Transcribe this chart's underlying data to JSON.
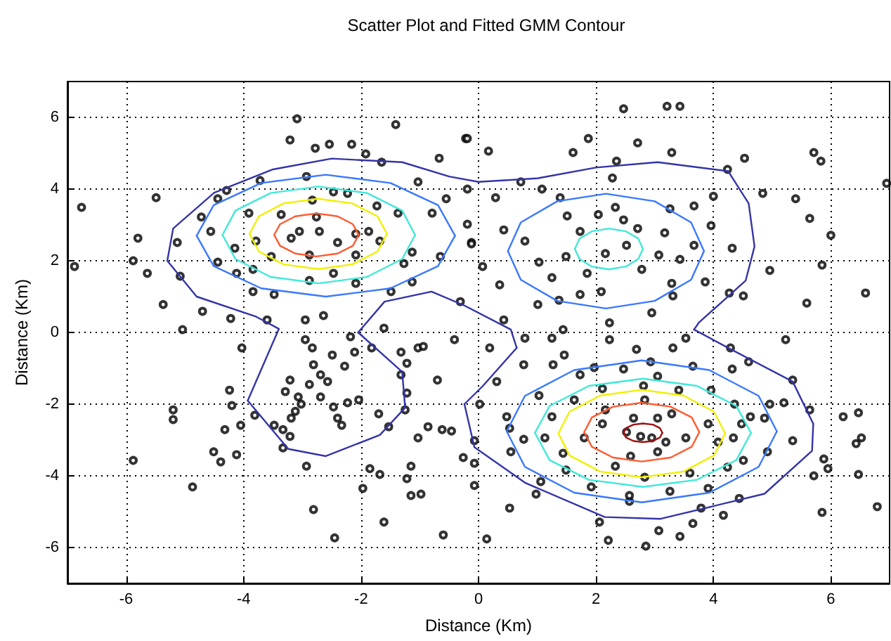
{
  "chart_data": {
    "type": "scatter",
    "title": "Scatter Plot and Fitted GMM Contour",
    "xlabel": "Distance (Km)",
    "ylabel": "Distance (Km)",
    "xlim": [
      -7,
      7
    ],
    "ylim": [
      -7,
      7
    ],
    "xticks": [
      -6,
      -4,
      -2,
      0,
      2,
      4,
      6
    ],
    "yticks": [
      -6,
      -4,
      -2,
      0,
      2,
      4,
      6
    ],
    "grid": true,
    "line_style": "solid",
    "series": [
      {
        "type": "scatter",
        "marker": "circle",
        "color": "#000000",
        "x": [
          -3.09,
          -1.41,
          -0.22,
          -6.76,
          -6.88,
          -5.49,
          -5.8,
          -5.88,
          -5.37,
          -5.04,
          -3.21,
          -2.78,
          -2.54,
          -2.16,
          -1.92,
          -1.65,
          -0.67,
          -3.72,
          -2.93,
          -4.29,
          -4.72,
          -5.13,
          -5.64,
          -5.08,
          -4.7,
          -4.22,
          -3.6,
          -2.95,
          -2.64,
          -1.61,
          -0.31,
          -0.19,
          -0.55,
          -1.03,
          -0.79,
          -0.19,
          -0.12,
          -0.65,
          -1.13,
          -1.27,
          -1.13,
          -1.49,
          -2.09,
          -2.47,
          -2.88,
          -3.48,
          -3.84,
          -4.12,
          -4.44,
          -4.56,
          -4.44,
          -3.91,
          -3.36,
          -3.05,
          -2.76,
          -2.4,
          -2.09,
          -2.23,
          -1.73,
          -1.37,
          -1.87,
          -1.68,
          -2.09,
          -2.88,
          -3.53,
          -3.79,
          -4.15,
          -3.84,
          -3.19,
          -2.71,
          -2.83,
          -2.47,
          2.47,
          3.21,
          3.43,
          -0.19,
          0.17,
          1.61,
          1.87,
          2.71,
          3.29,
          4.53,
          5.71,
          5.83,
          2.35,
          4.24,
          6.95,
          4.84,
          5.4,
          5.64,
          6.0,
          4.96,
          5.85,
          6.59,
          5.59,
          4.51,
          4.27,
          2.28,
          0.72,
          0.29,
          1.08,
          1.39,
          0.43,
          -0.12,
          0.07,
          0.36,
          0.43,
          0.79,
          1.03,
          1.25,
          1.49,
          1.73,
          1.51,
          2.04,
          2.33,
          2.47,
          2.16,
          2.52,
          2.71,
          3.26,
          3.17,
          3.67,
          3.96,
          3.67,
          3.43,
          3.07,
          2.78,
          1.85,
          2.09,
          1.73,
          1.37,
          3.29,
          3.31,
          3.86,
          2.95,
          2.23,
          1.01,
          1.44,
          4.0,
          4.32,
          -4.03,
          -4.24,
          -4.2,
          -5.2,
          -5.2,
          -5.88,
          -4.87,
          -4.51,
          -4.39,
          -4.12,
          -4.32,
          -4.05,
          -3.81,
          -3.48,
          -3.33,
          -3.21,
          -3.19,
          -3.12,
          -3.29,
          -3.21,
          -3.07,
          -3.02,
          -2.88,
          -2.81,
          -2.95,
          -2.83,
          -2.69,
          -2.57,
          -2.49,
          -2.28,
          -2.69,
          -2.47,
          -2.4,
          -2.33,
          -2.23,
          -2.04,
          -2.11,
          -2.18,
          -3.33,
          -2.93,
          -2.81,
          -2.45,
          -1.82,
          -1.32,
          -1.22,
          -1.32,
          -1.22,
          -1.25,
          -1.7,
          -1.53,
          -1.03,
          -0.94,
          -0.7,
          -0.41,
          -0.86,
          -0.62,
          -0.46,
          -1.03,
          -1.85,
          -1.68,
          -1.15,
          -1.22,
          -1.97,
          -1.15,
          -0.98,
          -1.61,
          -0.6,
          -0.26,
          -0.07,
          -0.07,
          -0.07,
          0.19,
          0.79,
          1.25,
          1.46,
          0.77,
          0.31,
          0.02,
          0.53,
          0.14,
          0.98,
          1.06,
          0.55,
          0.77,
          0.53,
          0.48,
          1.03,
          1.27,
          1.73,
          1.97,
          2.69,
          2.23,
          3.31,
          3.53,
          4.29,
          4.6,
          5.23,
          4.32,
          3.65,
          2.93,
          2.47,
          3.05,
          2.81,
          2.11,
          1.63,
          1.25,
          1.13,
          1.44,
          1.49,
          1.92,
          2.57,
          3.07,
          3.43,
          2.85,
          2.21,
          2.06,
          3.79,
          4.17,
          3.65,
          3.26,
          3.91,
          3.6,
          2.83,
          2.33,
          1.8,
          2.11,
          2.16,
          2.52,
          2.64,
          2.76,
          2.95,
          3.05,
          2.83,
          3.29,
          3.19,
          3.05,
          2.59,
          3.41,
          3.53,
          3.91,
          4.08,
          3.96,
          4.36,
          4.48,
          4.34,
          4.51,
          4.24,
          4.63,
          4.87,
          4.96,
          5.2,
          5.35,
          5.64,
          5.35,
          4.92,
          5.88,
          5.95,
          5.71,
          5.85,
          6.21,
          6.47,
          6.43,
          6.52,
          6.47,
          6.79,
          4.44,
          2.57
        ],
        "values": [
          5.96,
          5.8,
          5.41,
          3.49,
          1.84,
          3.76,
          2.63,
          2.0,
          0.78,
          0.08,
          5.37,
          5.14,
          5.25,
          5.25,
          4.98,
          4.75,
          4.86,
          4.24,
          4.35,
          3.96,
          3.22,
          2.51,
          1.65,
          1.57,
          0.59,
          0.39,
          0.35,
          0.35,
          0.47,
          0.12,
          0.86,
          4.0,
          3.73,
          4.2,
          3.33,
          3.02,
          2.51,
          2.12,
          2.24,
          1.92,
          1.41,
          1.14,
          1.37,
          1.65,
          1.45,
          1.06,
          1.14,
          1.65,
          1.96,
          2.82,
          3.73,
          3.33,
          3.29,
          2.82,
          3.22,
          2.51,
          2.75,
          3.88,
          3.53,
          3.33,
          2.82,
          2.55,
          2.16,
          2.16,
          2.12,
          2.55,
          2.35,
          1.76,
          2.63,
          2.82,
          3.69,
          3.92,
          6.24,
          6.31,
          6.31,
          5.41,
          5.06,
          5.02,
          5.41,
          5.29,
          5.02,
          4.86,
          5.02,
          4.78,
          4.78,
          4.55,
          4.16,
          3.88,
          3.73,
          3.18,
          2.71,
          1.73,
          1.88,
          1.1,
          0.82,
          1.02,
          1.1,
          4.31,
          4.2,
          3.76,
          4.0,
          3.76,
          2.86,
          2.47,
          1.84,
          1.33,
          0.35,
          2.55,
          1.96,
          1.53,
          2.12,
          2.82,
          3.25,
          3.29,
          3.49,
          3.14,
          2.2,
          2.43,
          2.9,
          3.45,
          2.78,
          3.53,
          2.98,
          2.43,
          2.04,
          2.16,
          1.76,
          1.65,
          1.14,
          1.06,
          0.9,
          1.37,
          1.02,
          1.41,
          0.55,
          0.27,
          0.78,
          0.08,
          3.8,
          2.35,
          -0.43,
          -1.61,
          -2.04,
          -2.16,
          -2.43,
          -3.57,
          -4.31,
          -3.33,
          -3.61,
          -3.41,
          -2.71,
          -2.59,
          -2.31,
          -2.59,
          -2.71,
          -2.9,
          -2.39,
          -2.2,
          -1.65,
          -1.33,
          -1.8,
          -2.0,
          -1.45,
          -0.9,
          -0.2,
          -0.43,
          -1.18,
          -1.37,
          -0.63,
          -0.94,
          -1.8,
          -2.08,
          -2.39,
          -2.59,
          -1.96,
          -1.88,
          -0.55,
          -0.12,
          -3.22,
          -3.73,
          -4.94,
          -5.73,
          -0.43,
          -0.55,
          -0.86,
          -1.18,
          -1.69,
          -2.16,
          -2.27,
          -2.63,
          -0.43,
          -0.39,
          -1.33,
          -0.2,
          -2.63,
          -2.71,
          -2.75,
          -2.94,
          -3.8,
          -3.96,
          -3.73,
          -4.08,
          -4.35,
          -4.55,
          -4.51,
          -5.29,
          -5.65,
          -3.49,
          -3.02,
          -3.65,
          -4.27,
          -0.43,
          -0.16,
          -0.16,
          -0.63,
          -0.9,
          -1.37,
          -2.0,
          -4.9,
          -5.76,
          -4.51,
          -4.16,
          -3.33,
          -2.98,
          -2.67,
          -2.35,
          -1.76,
          -0.9,
          -1.18,
          -0.98,
          -0.47,
          -0.2,
          -0.43,
          -0.16,
          -0.43,
          -0.82,
          -0.2,
          -1.02,
          -0.94,
          -0.82,
          -1.02,
          -1.22,
          -1.49,
          -1.57,
          -1.88,
          -2.35,
          -2.94,
          -3.37,
          -3.84,
          -4.31,
          -4.71,
          -5.53,
          -5.69,
          -5.96,
          -5.8,
          -5.29,
          -4.9,
          -5.1,
          -5.33,
          -4.43,
          -4.35,
          -3.92,
          -4.04,
          -3.73,
          -2.94,
          -2.55,
          -2.16,
          -2.78,
          -2.39,
          -2.9,
          -2.94,
          -2.39,
          -1.88,
          -2.27,
          -3.06,
          -3.33,
          -3.45,
          -1.61,
          -2.94,
          -2.55,
          -3.06,
          -1.61,
          -2.0,
          -2.55,
          -2.94,
          -3.57,
          -3.76,
          -2.35,
          -2.39,
          -2.0,
          -1.96,
          -1.33,
          -2.16,
          -3.02,
          -3.33,
          -3.53,
          -3.8,
          -4.0,
          -5.02,
          -2.35,
          -2.24,
          -3.1,
          -2.94,
          -3.96,
          -4.86,
          -4.63,
          -4.55
        ]
      },
      {
        "type": "line",
        "color": "#3434a8",
        "x": [
          -3.93,
          -3.4
        ],
        "values": [
          -1.9,
          0.1
        ]
      },
      {
        "type": "line",
        "color": "#3434a8",
        "x": [
          -3.4,
          -3.8,
          -4.8,
          -5.3,
          -5.2,
          -4.5,
          -3.5,
          -2.5,
          -1.3,
          -0.5,
          0,
          1.0,
          2.0,
          3.05,
          4.25,
          4.6,
          4.7,
          4.55,
          3.75,
          3.67
        ],
        "values": [
          0.1,
          0.45,
          1.0,
          2.0,
          2.9,
          3.9,
          4.55,
          4.85,
          4.75,
          4.35,
          4.2,
          4.3,
          4.6,
          4.75,
          4.5,
          3.6,
          2.4,
          1.45,
          0.27,
          0.08
        ]
      },
      {
        "type": "line",
        "color": "#3434a8",
        "x": [
          3.67,
          4.25,
          5.35,
          5.7
        ],
        "values": [
          0.08,
          -0.43,
          -1.37,
          -2.55
        ]
      },
      {
        "type": "line",
        "color": "#3434a8",
        "x": [
          5.7,
          5.68,
          4.87,
          3.1,
          2.15,
          0.8,
          -0.07,
          -0.24
        ],
        "values": [
          -2.55,
          -3.3,
          -4.5,
          -5.2,
          -5.15,
          -4.2,
          -3.2,
          -2.0
        ]
      },
      {
        "type": "line",
        "color": "#3434a8",
        "x": [
          -0.24,
          0.07,
          0.65
        ],
        "values": [
          -2.0,
          -1.5,
          -0.43
        ]
      },
      {
        "type": "line",
        "color": "#3434a8",
        "x": [
          0.65,
          0.55,
          -0.24,
          -0.8,
          -1.6,
          -2.05
        ],
        "values": [
          -0.43,
          0.08,
          0.75,
          1.14,
          0.86,
          0.0
        ]
      },
      {
        "type": "line",
        "color": "#3434a8",
        "x": [
          -2.05,
          -1.3,
          -1.25
        ],
        "values": [
          0.0,
          -1.1,
          -2.1
        ]
      },
      {
        "type": "line",
        "color": "#3434a8",
        "x": [
          -1.25,
          -1.68,
          -2.6,
          -3.24,
          -3.93
        ],
        "values": [
          -2.1,
          -2.86,
          -3.45,
          -3.25,
          -1.9
        ]
      },
      {
        "type": "line",
        "color": "#3a78ff",
        "x": [
          -0.4,
          -0.69,
          -1.5,
          -2.6,
          -3.7,
          -4.51,
          -4.8
        ],
        "values": [
          2.7,
          3.55,
          4.17,
          4.4,
          4.17,
          3.55,
          2.7
        ]
      },
      {
        "type": "line",
        "color": "#3a78ff",
        "x": [
          -4.8,
          -4.51,
          -3.7,
          -2.6,
          -1.5,
          -0.69,
          -0.4
        ],
        "values": [
          2.7,
          1.85,
          1.23,
          1.0,
          1.23,
          1.85,
          2.7
        ]
      },
      {
        "type": "line",
        "color": "#40e8d8",
        "x": [
          -1.08,
          -1.3,
          -1.9,
          -2.72,
          -3.54,
          -4.14,
          -4.36
        ],
        "values": [
          2.72,
          3.4,
          3.89,
          4.07,
          3.89,
          3.4,
          2.72
        ]
      },
      {
        "type": "line",
        "color": "#40e8d8",
        "x": [
          -4.36,
          -4.14,
          -3.54,
          -2.72,
          -1.9,
          -1.3,
          -1.08
        ],
        "values": [
          2.72,
          2.05,
          1.55,
          1.37,
          1.55,
          2.05,
          2.72
        ]
      },
      {
        "type": "line",
        "color": "#f0f000",
        "x": [
          -1.56,
          -1.72,
          -2.15,
          -2.73,
          -3.32,
          -3.74,
          -3.9
        ],
        "values": [
          2.75,
          3.24,
          3.6,
          3.73,
          3.6,
          3.24,
          2.75
        ]
      },
      {
        "type": "line",
        "color": "#f0f000",
        "x": [
          -3.9,
          -3.74,
          -3.32,
          -2.73,
          -2.15,
          -1.72,
          -1.56
        ],
        "values": [
          2.75,
          2.26,
          1.9,
          1.77,
          1.9,
          2.26,
          2.75
        ]
      },
      {
        "type": "line",
        "color": "#ff5a30",
        "x": [
          -2.04,
          -2.14,
          -2.4,
          -2.76,
          -3.12,
          -3.38,
          -3.48
        ],
        "values": [
          2.72,
          3.02,
          3.24,
          3.32,
          3.24,
          3.02,
          2.72
        ]
      },
      {
        "type": "line",
        "color": "#ff5a30",
        "x": [
          -3.48,
          -3.38,
          -3.12,
          -2.76,
          -2.4,
          -2.14,
          -2.04
        ],
        "values": [
          2.72,
          2.42,
          2.2,
          2.12,
          2.2,
          2.42,
          2.72
        ]
      },
      {
        "type": "line",
        "color": "#3a78ff",
        "x": [
          3.84,
          3.62,
          3.0,
          2.17,
          1.34,
          0.72,
          0.5
        ],
        "values": [
          2.27,
          3.07,
          3.66,
          3.87,
          3.66,
          3.07,
          2.27
        ]
      },
      {
        "type": "line",
        "color": "#3a78ff",
        "x": [
          0.5,
          0.72,
          1.34,
          2.17,
          3.0,
          3.62,
          3.84
        ],
        "values": [
          2.27,
          1.47,
          0.88,
          0.67,
          0.88,
          1.47,
          2.27
        ]
      },
      {
        "type": "line",
        "color": "#40e8d8",
        "x": [
          2.8,
          2.72,
          2.51,
          2.22,
          1.93,
          1.72,
          1.64
        ],
        "values": [
          2.33,
          2.62,
          2.82,
          2.9,
          2.82,
          2.62,
          2.33
        ]
      },
      {
        "type": "line",
        "color": "#40e8d8",
        "x": [
          1.64,
          1.72,
          1.93,
          2.22,
          2.51,
          2.72,
          2.8
        ],
        "values": [
          2.33,
          2.05,
          1.84,
          1.76,
          1.84,
          2.05,
          2.33
        ]
      },
      {
        "type": "line",
        "color": "#3a78ff",
        "x": [
          5.08,
          4.77,
          3.93,
          2.78,
          1.63,
          0.79,
          0.48
        ],
        "values": [
          -2.76,
          -1.77,
          -1.05,
          -0.78,
          -1.05,
          -1.77,
          -2.76
        ]
      },
      {
        "type": "line",
        "color": "#3a78ff",
        "x": [
          0.48,
          0.79,
          1.63,
          2.78,
          3.93,
          4.77,
          5.08
        ],
        "values": [
          -2.76,
          -3.75,
          -4.47,
          -4.74,
          -4.47,
          -3.75,
          -2.76
        ]
      },
      {
        "type": "line",
        "color": "#40e8d8",
        "x": [
          4.64,
          4.39,
          3.72,
          2.8,
          1.88,
          1.21,
          0.96
        ],
        "values": [
          -2.8,
          -2.05,
          -1.49,
          -1.29,
          -1.49,
          -2.05,
          -2.8
        ]
      },
      {
        "type": "line",
        "color": "#40e8d8",
        "x": [
          0.96,
          1.21,
          1.88,
          2.8,
          3.72,
          4.39,
          4.64
        ],
        "values": [
          -2.8,
          -3.56,
          -4.11,
          -4.31,
          -4.11,
          -3.56,
          -2.8
        ]
      },
      {
        "type": "line",
        "color": "#f0f000",
        "x": [
          4.2,
          4.01,
          3.49,
          2.78,
          2.07,
          1.55,
          1.36
        ],
        "values": [
          -2.82,
          -2.21,
          -1.76,
          -1.6,
          -1.76,
          -2.21,
          -2.82
        ]
      },
      {
        "type": "line",
        "color": "#f0f000",
        "x": [
          1.36,
          1.55,
          2.07,
          2.78,
          3.49,
          4.01,
          4.2
        ],
        "values": [
          -2.82,
          -3.43,
          -3.88,
          -4.04,
          -3.88,
          -3.43,
          -2.82
        ]
      },
      {
        "type": "line",
        "color": "#ff5a30",
        "x": [
          3.76,
          3.63,
          3.27,
          2.78,
          2.29,
          1.93,
          1.8
        ],
        "values": [
          -2.78,
          -2.37,
          -2.07,
          -1.96,
          -2.07,
          -2.37,
          -2.78
        ]
      },
      {
        "type": "line",
        "color": "#ff5a30",
        "x": [
          1.8,
          1.93,
          2.29,
          2.78,
          3.27,
          3.63,
          3.76
        ],
        "values": [
          -2.78,
          -3.19,
          -3.49,
          -3.6,
          -3.49,
          -3.19,
          -2.78
        ]
      },
      {
        "type": "line",
        "color": "#a01010",
        "x": [
          3.13,
          3.09,
          2.97,
          2.8,
          2.64,
          2.51,
          2.47
        ],
        "values": [
          -2.8,
          -2.67,
          -2.57,
          -2.54,
          -2.57,
          -2.67,
          -2.8
        ]
      },
      {
        "type": "line",
        "color": "#a01010",
        "x": [
          2.47,
          2.51,
          2.64,
          2.8,
          2.97,
          3.09,
          3.13
        ],
        "values": [
          -2.8,
          -2.93,
          -3.03,
          -3.06,
          -3.03,
          -2.93,
          -2.8
        ]
      }
    ]
  }
}
